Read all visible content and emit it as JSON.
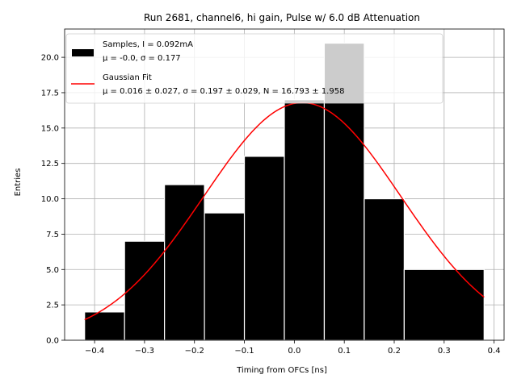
{
  "chart_data": {
    "type": "bar",
    "title": "Run 2681, channel6, hi gain, Pulse w/ 6.0 dB Attenuation",
    "xlabel": "Timing from OFCs [ns]",
    "ylabel": "Entries",
    "xlim": [
      -0.46,
      0.42
    ],
    "ylim": [
      0,
      22
    ],
    "xticks": [
      -0.4,
      -0.3,
      -0.2,
      -0.1,
      0.0,
      0.1,
      0.2,
      0.3,
      0.4
    ],
    "xtick_labels": [
      "−0.4",
      "−0.3",
      "−0.2",
      "−0.1",
      "0.0",
      "0.1",
      "0.2",
      "0.3",
      "0.4"
    ],
    "yticks": [
      0,
      2.5,
      5,
      7.5,
      10,
      12.5,
      15,
      17.5,
      20
    ],
    "ytick_labels": [
      "0.0",
      "2.5",
      "5.0",
      "7.5",
      "10.0",
      "12.5",
      "15.0",
      "17.5",
      "20.0"
    ],
    "grid": true,
    "legend_position": "top-left",
    "bins": [
      {
        "x0": -0.42,
        "x1": -0.34,
        "count": 2
      },
      {
        "x0": -0.34,
        "x1": -0.26,
        "count": 7
      },
      {
        "x0": -0.26,
        "x1": -0.18,
        "count": 11
      },
      {
        "x0": -0.18,
        "x1": -0.1,
        "count": 9
      },
      {
        "x0": -0.1,
        "x1": -0.02,
        "count": 13
      },
      {
        "x0": -0.02,
        "x1": 0.06,
        "count": 17
      },
      {
        "x0": 0.06,
        "x1": 0.14,
        "count": 21
      },
      {
        "x0": 0.14,
        "x1": 0.22,
        "count": 10
      },
      {
        "x0": 0.22,
        "x1": 0.38,
        "count": 5
      }
    ],
    "fit": {
      "type": "gaussian",
      "mu": 0.016,
      "sigma": 0.197,
      "N": 16.793,
      "x_range": [
        -0.42,
        0.38
      ],
      "color": "#ff0000"
    },
    "series": [
      {
        "name": "Samples, I = 0.092mA",
        "stats": "μ = -0.0, σ = 0.177",
        "color": "#000000"
      },
      {
        "name": "Gaussian Fit",
        "stats": "μ = 0.016 ± 0.027, σ = 0.197 ± 0.029, N = 16.793 ± 1.958",
        "color": "#ff0000"
      }
    ]
  }
}
